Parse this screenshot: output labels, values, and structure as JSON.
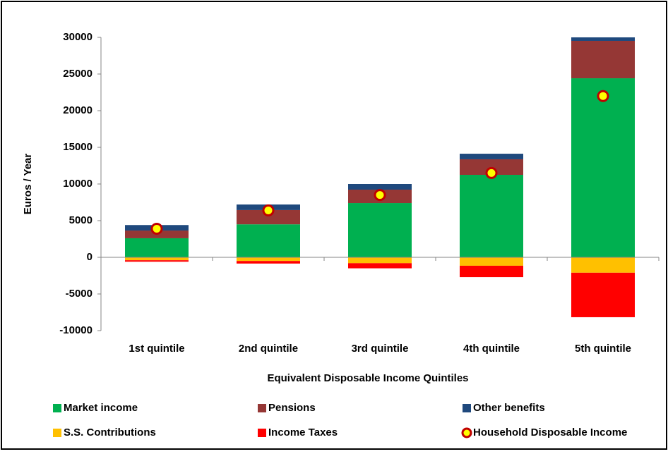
{
  "chart_data": {
    "type": "bar",
    "stacked": true,
    "x_label": "Equivalent Disposable Income Quintiles",
    "y_label": "Euros / Year",
    "categories": [
      "1st quintile",
      "2nd quintile",
      "3rd quintile",
      "4th quintile",
      "5th quintile"
    ],
    "series": [
      {
        "name": "Market income",
        "color": "#00b050",
        "values": [
          2600,
          4500,
          7400,
          11250,
          24420
        ]
      },
      {
        "name": "Pensions",
        "color": "#953735",
        "values": [
          1050,
          1950,
          1830,
          2120,
          5100
        ]
      },
      {
        "name": "Other benefits",
        "color": "#1f497d",
        "values": [
          750,
          750,
          770,
          760,
          480
        ]
      },
      {
        "name": "S.S. Contributions",
        "color": "#ffc000",
        "values": [
          -400,
          -500,
          -800,
          -1150,
          -2100
        ]
      },
      {
        "name": "Income Taxes",
        "color": "#ff0000",
        "values": [
          -200,
          -350,
          -700,
          -1550,
          -6070
        ]
      },
      {
        "name": "Household Disposable Income",
        "type": "scatter",
        "color": "#ffff00",
        "edgecolor": "#c00000",
        "values": [
          3900,
          6400,
          8500,
          11500,
          22000
        ]
      }
    ],
    "ylim": [
      -10000,
      30000
    ],
    "yticks": [
      -10000,
      -5000,
      0,
      5000,
      10000,
      15000,
      20000,
      25000,
      30000
    ],
    "grid": false,
    "legend": "bottom"
  }
}
